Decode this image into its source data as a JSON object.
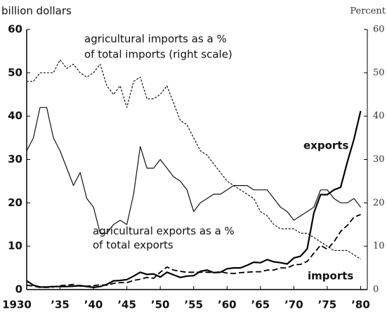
{
  "chart_data": {
    "type": "line",
    "y_label": "billion dollars",
    "y2_label": "Percent",
    "annotations": [
      "agricultural imports as a %",
      "of total imports (right scale)",
      "agricultural exports as a %",
      "of total exports",
      "exports",
      "imports"
    ],
    "x": [
      1930,
      1931,
      1932,
      1933,
      1934,
      1935,
      1936,
      1937,
      1938,
      1939,
      1940,
      1941,
      1942,
      1943,
      1944,
      1945,
      1946,
      1947,
      1948,
      1949,
      1950,
      1951,
      1952,
      1953,
      1954,
      1955,
      1956,
      1957,
      1958,
      1959,
      1960,
      1961,
      1962,
      1963,
      1964,
      1965,
      1966,
      1967,
      1968,
      1969,
      1970,
      1971,
      1972,
      1973,
      1974,
      1975,
      1976,
      1977,
      1978,
      1979,
      1980
    ],
    "xlim": [
      1930,
      1981
    ],
    "xticks": [
      {
        "value": 1930,
        "label": "1930"
      },
      {
        "value": 1935,
        "label": "’35"
      },
      {
        "value": 1940,
        "label": "’40"
      },
      {
        "value": 1945,
        "label": "’45"
      },
      {
        "value": 1950,
        "label": "’50"
      },
      {
        "value": 1955,
        "label": "’55"
      },
      {
        "value": 1960,
        "label": "’60"
      },
      {
        "value": 1965,
        "label": "’65"
      },
      {
        "value": 1970,
        "label": "’70"
      },
      {
        "value": 1975,
        "label": "’75"
      },
      {
        "value": 1980,
        "label": "’80"
      }
    ],
    "ylim": [
      0,
      60
    ],
    "yticks": [
      0,
      10,
      20,
      30,
      40,
      50,
      60
    ],
    "y2lim": [
      0,
      60
    ],
    "y2ticks": [
      0,
      10,
      20,
      30,
      40,
      50,
      60
    ],
    "series": [
      {
        "name": "agricultural imports as a % of total imports",
        "axis": "y2",
        "color": "#111111",
        "style": "dotted",
        "width": 1.2,
        "values": [
          48,
          48,
          50,
          50,
          50,
          53,
          51,
          52,
          50,
          49,
          50,
          52,
          47,
          45,
          47,
          42,
          48,
          49,
          44,
          44,
          45,
          47,
          43,
          39,
          38,
          35,
          32,
          31,
          29,
          27,
          25,
          24,
          23,
          22,
          21,
          18,
          17,
          15,
          14,
          14,
          14,
          13,
          13,
          12,
          11,
          10,
          9,
          9,
          9,
          8,
          7
        ]
      },
      {
        "name": "agricultural exports as a % of total exports",
        "axis": "y2",
        "color": "#111111",
        "style": "solid",
        "width": 1.2,
        "values": [
          32,
          35,
          42,
          42,
          35,
          32,
          28,
          24,
          27,
          21,
          19,
          13,
          13,
          15,
          16,
          15,
          22,
          33,
          28,
          28,
          30,
          28,
          26,
          25,
          23,
          18,
          20,
          21,
          22,
          22,
          23,
          24,
          24,
          24,
          23,
          23,
          23,
          21,
          19,
          18,
          16,
          17,
          18,
          19,
          23,
          23,
          21,
          20,
          20,
          21,
          19
        ]
      },
      {
        "name": "exports",
        "color": "#000000",
        "style": "solid",
        "width": 2.2,
        "values": [
          2,
          1,
          0.6,
          0.6,
          0.7,
          0.7,
          0.7,
          0.8,
          0.9,
          0.7,
          0.5,
          0.7,
          1.2,
          2.0,
          2.1,
          2.3,
          3.1,
          4.0,
          3.5,
          3.6,
          2.9,
          4.0,
          3.4,
          2.8,
          3.1,
          3.2,
          4.2,
          4.5,
          3.9,
          4.0,
          4.8,
          5.0,
          5.0,
          5.6,
          6.3,
          6.2,
          6.9,
          6.4,
          6.2,
          5.9,
          7.3,
          7.7,
          9.4,
          17.7,
          21.9,
          21.9,
          23.0,
          23.6,
          29.4,
          34.7,
          41.2
        ]
      },
      {
        "name": "imports",
        "color": "#000000",
        "style": "dashed",
        "width": 1.8,
        "values": [
          1.0,
          0.8,
          0.5,
          0.5,
          0.6,
          0.9,
          1.0,
          1.2,
          0.8,
          0.8,
          0.9,
          1.1,
          1.0,
          1.4,
          1.6,
          1.6,
          2.1,
          2.4,
          2.8,
          2.6,
          4.0,
          5.2,
          4.5,
          4.2,
          4.0,
          4.0,
          4.0,
          4.0,
          3.9,
          4.1,
          3.8,
          3.7,
          3.9,
          4.0,
          4.1,
          4.1,
          4.5,
          4.5,
          5.0,
          5.0,
          5.7,
          5.8,
          6.5,
          8.4,
          10.2,
          9.3,
          11.0,
          13.4,
          14.8,
          16.7,
          17.3
        ]
      }
    ]
  }
}
